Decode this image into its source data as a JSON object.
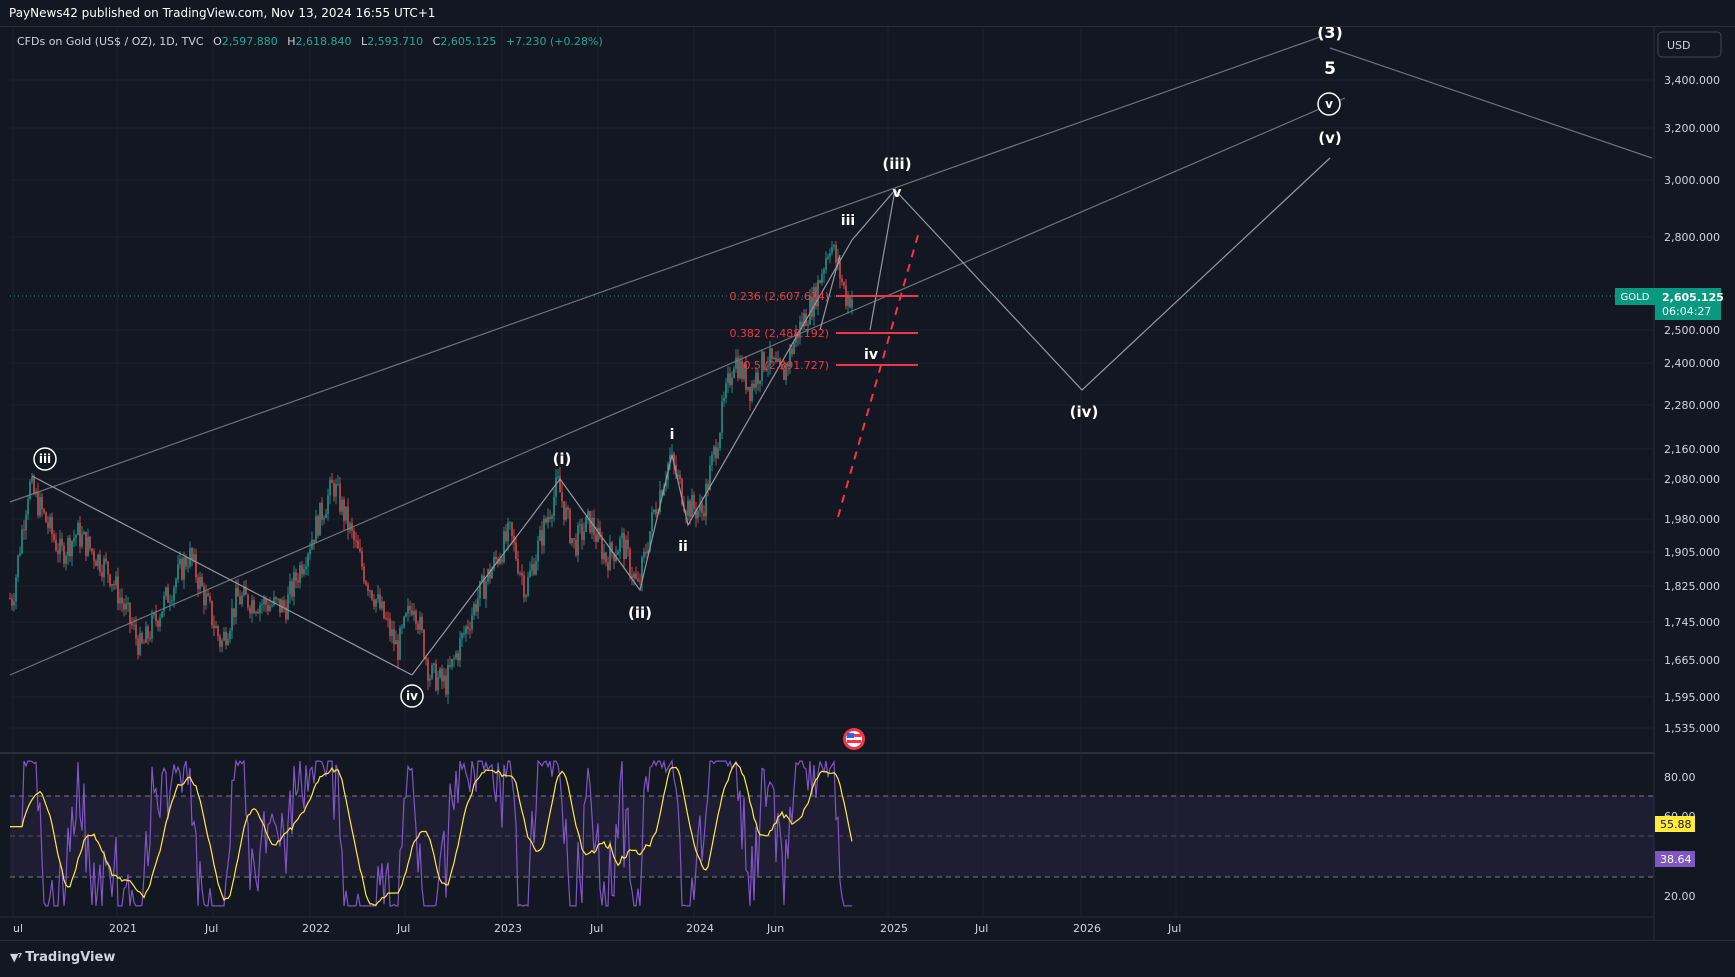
{
  "header": {
    "published": "PayNews42 published on TradingView.com, Nov 13, 2024 16:55 UTC+1"
  },
  "symbol": {
    "name": "CFDs on Gold (US$ / OZ), 1D, TVC",
    "o_label": "O",
    "o": "2,597.880",
    "h_label": "H",
    "h": "2,618.840",
    "l_label": "L",
    "l": "2,593.710",
    "c_label": "C",
    "c": "2,605.125",
    "change": "+7.230 (+0.28%)"
  },
  "currency": "USD",
  "last_price": {
    "ticker": "GOLD",
    "price": "2,605.125",
    "countdown": "06:04:27"
  },
  "rsi_values": {
    "rsi": "38.64",
    "rsi_ma": "55.88"
  },
  "colors": {
    "bg": "#131722",
    "up": "#26a69a",
    "down": "#ef5350",
    "rsi": "#7e57c2",
    "rsi_ma": "#ffeb3b",
    "fib": "#f23645",
    "label_green": "#089981",
    "wave_line": "#787b86"
  },
  "footer": {
    "brand": "TradingView"
  },
  "chart_data": {
    "type": "candlestick",
    "price_ticks": [
      "3,400.000",
      "3,200.000",
      "3,000.000",
      "2,800.000",
      "2,500.000",
      "2,400.000",
      "2,280.000",
      "2,160.000",
      "2,080.000",
      "1,980.000",
      "1,905.000",
      "1,825.000",
      "1,745.000",
      "1,665.000",
      "1,595.000",
      "1,535.000"
    ],
    "rsi_ticks": [
      "80.00",
      "60.00",
      "20.00"
    ],
    "time_ticks": [
      "ul",
      "2021",
      "Jul",
      "2022",
      "Jul",
      "2023",
      "Jul",
      "2024",
      "Jun",
      "2025",
      "Jul",
      "2026",
      "Jul"
    ],
    "price_path": [
      [
        "2020-07",
        1800
      ],
      [
        "2020-08",
        2070
      ],
      [
        "2020-10",
        1900
      ],
      [
        "2020-11",
        1950
      ],
      [
        "2021-01",
        1860
      ],
      [
        "2021-03",
        1690
      ],
      [
        "2021-06",
        1900
      ],
      [
        "2021-08",
        1700
      ],
      [
        "2021-09",
        1800
      ],
      [
        "2021-12",
        1780
      ],
      [
        "2022-03",
        2070
      ],
      [
        "2022-05",
        1850
      ],
      [
        "2022-07",
        1690
      ],
      [
        "2022-08",
        1800
      ],
      [
        "2022-09",
        1640
      ],
      [
        "2022-10",
        1620
      ],
      [
        "2022-12",
        1800
      ],
      [
        "2023-02",
        1950
      ],
      [
        "2023-03",
        1820
      ],
      [
        "2023-05",
        2070
      ],
      [
        "2023-06",
        1920
      ],
      [
        "2023-07",
        1980
      ],
      [
        "2023-08",
        1890
      ],
      [
        "2023-09",
        1930
      ],
      [
        "2023-10",
        1820
      ],
      [
        "2023-11",
        2000
      ],
      [
        "2023-12",
        2140
      ],
      [
        "2024-01",
        2020
      ],
      [
        "2024-02",
        2000
      ],
      [
        "2024-03",
        2200
      ],
      [
        "2024-04",
        2420
      ],
      [
        "2024-05",
        2330
      ],
      [
        "2024-06",
        2420
      ],
      [
        "2024-07",
        2360
      ],
      [
        "2024-08",
        2500
      ],
      [
        "2024-09",
        2600
      ],
      [
        "2024-10",
        2790
      ],
      [
        "2024-11",
        2605
      ]
    ],
    "fibonacci": [
      {
        "ratio": "0.236",
        "label": "0.236 (2,607.674)"
      },
      {
        "ratio": "0.382",
        "label": "0.382 (2,488.192)"
      },
      {
        "ratio": "0.5",
        "label": "0.5 (2,391.727)"
      }
    ],
    "waves": [
      "iii",
      "iv",
      "(i)",
      "(ii)",
      "i",
      "ii",
      "iii",
      "iv",
      "v",
      "(iii)",
      "(iv)",
      "(v)",
      "v",
      "5",
      "(3)"
    ],
    "rsi_levels": [
      70,
      50,
      30
    ]
  }
}
